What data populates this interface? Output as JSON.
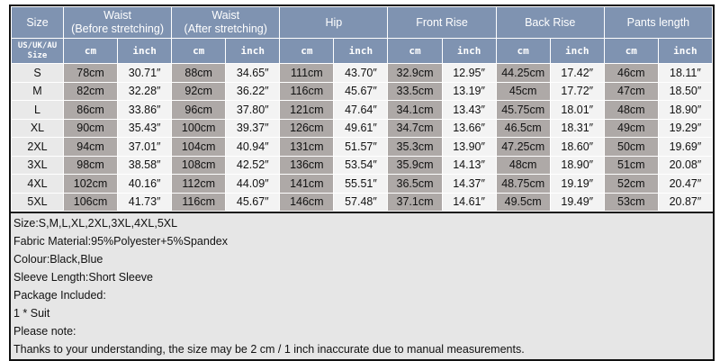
{
  "header": {
    "groups": [
      "Size",
      "Waist\n(Before stretching)",
      "Waist\n(After stretching)",
      "Hip",
      "Front Rise",
      "Back Rise",
      "Pants length"
    ],
    "size_sub": "US/UK/AU Size",
    "unit_cm": "cm",
    "unit_inch": "inch"
  },
  "rows": [
    [
      "S",
      "78cm",
      "30.71″",
      "88cm",
      "34.65″",
      "111cm",
      "43.70″",
      "32.9cm",
      "12.95″",
      "44.25cm",
      "17.42″",
      "46cm",
      "18.11″"
    ],
    [
      "M",
      "82cm",
      "32.28″",
      "92cm",
      "36.22″",
      "116cm",
      "45.67″",
      "33.5cm",
      "13.19″",
      "45cm",
      "17.72″",
      "47cm",
      "18.50″"
    ],
    [
      "L",
      "86cm",
      "33.86″",
      "96cm",
      "37.80″",
      "121cm",
      "47.64″",
      "34.1cm",
      "13.43″",
      "45.75cm",
      "18.01″",
      "48cm",
      "18.90″"
    ],
    [
      "XL",
      "90cm",
      "35.43″",
      "100cm",
      "39.37″",
      "126cm",
      "49.61″",
      "34.7cm",
      "13.66″",
      "46.5cm",
      "18.31″",
      "49cm",
      "19.29″"
    ],
    [
      "2XL",
      "94cm",
      "37.01″",
      "104cm",
      "40.94″",
      "131cm",
      "51.57″",
      "35.3cm",
      "13.90″",
      "47.25cm",
      "18.60″",
      "50cm",
      "19.69″"
    ],
    [
      "3XL",
      "98cm",
      "38.58″",
      "108cm",
      "42.52″",
      "136cm",
      "53.54″",
      "35.9cm",
      "14.13″",
      "48cm",
      "18.90″",
      "51cm",
      "20.08″"
    ],
    [
      "4XL",
      "102cm",
      "40.16″",
      "112cm",
      "44.09″",
      "141cm",
      "55.51″",
      "36.5cm",
      "14.37″",
      "48.75cm",
      "19.19″",
      "52cm",
      "20.47″"
    ],
    [
      "5XL",
      "106cm",
      "41.73″",
      "116cm",
      "45.67″",
      "146cm",
      "57.48″",
      "37.1cm",
      "14.61″",
      "49.5cm",
      "19.49″",
      "53cm",
      "20.87″"
    ]
  ],
  "notes": [
    "Size:S,M,L,XL,2XL,3XL,4XL,5XL",
    "Fabric Material:95%Polyester+5%Spandex",
    "Colour:Black,Blue",
    "Sleeve Length:Short Sleeve",
    "Package Included:",
    "1 * Suit",
    "Please note:",
    "Thanks to your understanding, the size may be 2 cm / 1 inch inaccurate due to manual measurements."
  ],
  "colors": {
    "header": "#7f93b1",
    "cm_cell": "#aea9a7",
    "inch_cell": "#f3f3f3"
  }
}
